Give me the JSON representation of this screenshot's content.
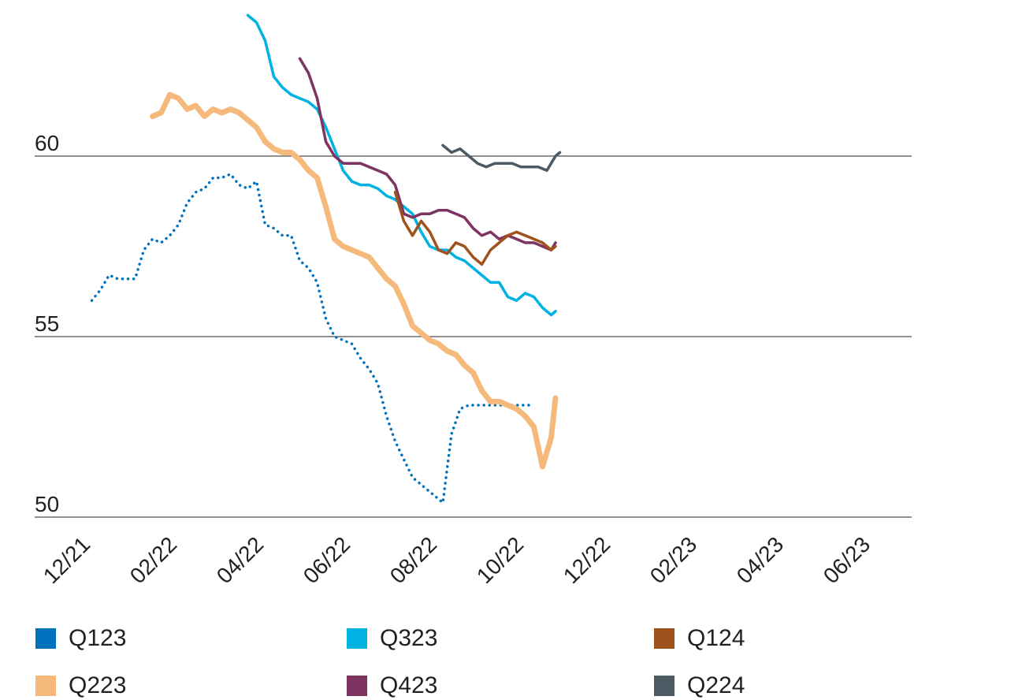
{
  "chart_data": {
    "type": "line",
    "ylim": [
      50,
      64
    ],
    "yticks": [
      50,
      55,
      60
    ],
    "x_tick_labels": [
      "12/21",
      "02/22",
      "04/22",
      "06/22",
      "08/22",
      "10/22",
      "12/22",
      "02/23",
      "04/23",
      "06/23"
    ],
    "x_tick_months": [
      0,
      2,
      4,
      6,
      8,
      10,
      12,
      14,
      16,
      18
    ],
    "grid": "horizontal",
    "legend_placement": "bottom",
    "series": [
      {
        "name": "Q123",
        "color": "#0071bc",
        "style": "dotted",
        "points": [
          [
            0.3,
            56
          ],
          [
            0.5,
            56.3
          ],
          [
            0.7,
            56.7
          ],
          [
            0.9,
            56.6
          ],
          [
            1.1,
            56.6
          ],
          [
            1.3,
            56.6
          ],
          [
            1.5,
            57.4
          ],
          [
            1.7,
            57.7
          ],
          [
            1.9,
            57.6
          ],
          [
            2.1,
            57.8
          ],
          [
            2.3,
            58.1
          ],
          [
            2.5,
            58.7
          ],
          [
            2.7,
            59.0
          ],
          [
            2.9,
            59.1
          ],
          [
            3.1,
            59.4
          ],
          [
            3.3,
            59.4
          ],
          [
            3.5,
            59.5
          ],
          [
            3.7,
            59.2
          ],
          [
            3.9,
            59.1
          ],
          [
            4.1,
            59.3
          ],
          [
            4.3,
            58.1
          ],
          [
            4.5,
            58.0
          ],
          [
            4.7,
            57.8
          ],
          [
            4.9,
            57.8
          ],
          [
            5.1,
            57.1
          ],
          [
            5.3,
            56.9
          ],
          [
            5.5,
            56.5
          ],
          [
            5.7,
            55.5
          ],
          [
            5.9,
            55.0
          ],
          [
            6.1,
            54.9
          ],
          [
            6.3,
            54.8
          ],
          [
            6.5,
            54.4
          ],
          [
            6.7,
            54.1
          ],
          [
            6.9,
            53.7
          ],
          [
            7.1,
            52.8
          ],
          [
            7.3,
            52.1
          ],
          [
            7.5,
            51.6
          ],
          [
            7.7,
            51.1
          ],
          [
            7.9,
            50.9
          ],
          [
            8.1,
            50.7
          ],
          [
            8.3,
            50.5
          ],
          [
            8.4,
            50.4
          ],
          [
            8.6,
            52.3
          ],
          [
            8.8,
            53.0
          ],
          [
            9.0,
            53.1
          ],
          [
            9.2,
            53.1
          ],
          [
            9.5,
            53.1
          ],
          [
            9.8,
            53.1
          ],
          [
            10.1,
            53.1
          ],
          [
            10.4,
            53.1
          ]
        ]
      },
      {
        "name": "Q223",
        "color": "#f5b97c",
        "style": "solid",
        "points": [
          [
            1.7,
            61.1
          ],
          [
            1.9,
            61.2
          ],
          [
            2.1,
            61.7
          ],
          [
            2.3,
            61.6
          ],
          [
            2.5,
            61.3
          ],
          [
            2.7,
            61.4
          ],
          [
            2.9,
            61.1
          ],
          [
            3.1,
            61.3
          ],
          [
            3.3,
            61.2
          ],
          [
            3.5,
            61.3
          ],
          [
            3.7,
            61.2
          ],
          [
            3.9,
            61.0
          ],
          [
            4.1,
            60.8
          ],
          [
            4.3,
            60.4
          ],
          [
            4.5,
            60.2
          ],
          [
            4.7,
            60.1
          ],
          [
            4.9,
            60.1
          ],
          [
            5.1,
            59.9
          ],
          [
            5.3,
            59.6
          ],
          [
            5.5,
            59.4
          ],
          [
            5.7,
            58.6
          ],
          [
            5.9,
            57.7
          ],
          [
            6.1,
            57.5
          ],
          [
            6.3,
            57.4
          ],
          [
            6.5,
            57.3
          ],
          [
            6.7,
            57.2
          ],
          [
            6.9,
            56.9
          ],
          [
            7.1,
            56.6
          ],
          [
            7.3,
            56.4
          ],
          [
            7.5,
            55.9
          ],
          [
            7.7,
            55.3
          ],
          [
            7.9,
            55.1
          ],
          [
            8.1,
            54.9
          ],
          [
            8.3,
            54.8
          ],
          [
            8.5,
            54.6
          ],
          [
            8.7,
            54.5
          ],
          [
            8.9,
            54.2
          ],
          [
            9.1,
            54.0
          ],
          [
            9.3,
            53.5
          ],
          [
            9.5,
            53.2
          ],
          [
            9.7,
            53.2
          ],
          [
            9.9,
            53.1
          ],
          [
            10.1,
            53.0
          ],
          [
            10.3,
            52.8
          ],
          [
            10.5,
            52.5
          ],
          [
            10.7,
            51.4
          ],
          [
            10.9,
            52.2
          ],
          [
            11.0,
            53.3
          ]
        ]
      },
      {
        "name": "Q323",
        "color": "#00b2e2",
        "style": "solid",
        "points": [
          [
            3.9,
            63.9
          ],
          [
            4.1,
            63.7
          ],
          [
            4.3,
            63.2
          ],
          [
            4.5,
            62.2
          ],
          [
            4.7,
            61.9
          ],
          [
            4.9,
            61.7
          ],
          [
            5.1,
            61.6
          ],
          [
            5.3,
            61.5
          ],
          [
            5.5,
            61.3
          ],
          [
            5.7,
            60.8
          ],
          [
            5.9,
            60.2
          ],
          [
            6.1,
            59.6
          ],
          [
            6.3,
            59.3
          ],
          [
            6.5,
            59.2
          ],
          [
            6.7,
            59.2
          ],
          [
            6.9,
            59.1
          ],
          [
            7.1,
            58.9
          ],
          [
            7.3,
            58.8
          ],
          [
            7.5,
            58.6
          ],
          [
            7.7,
            58.4
          ],
          [
            7.9,
            57.9
          ],
          [
            8.1,
            57.5
          ],
          [
            8.3,
            57.4
          ],
          [
            8.5,
            57.4
          ],
          [
            8.7,
            57.2
          ],
          [
            8.9,
            57.1
          ],
          [
            9.1,
            56.9
          ],
          [
            9.3,
            56.7
          ],
          [
            9.5,
            56.5
          ],
          [
            9.7,
            56.5
          ],
          [
            9.9,
            56.1
          ],
          [
            10.1,
            56.0
          ],
          [
            10.3,
            56.2
          ],
          [
            10.5,
            56.1
          ],
          [
            10.7,
            55.8
          ],
          [
            10.9,
            55.6
          ],
          [
            11.0,
            55.7
          ]
        ]
      },
      {
        "name": "Q423",
        "color": "#7d3460",
        "style": "solid",
        "points": [
          [
            5.1,
            62.7
          ],
          [
            5.3,
            62.3
          ],
          [
            5.5,
            61.6
          ],
          [
            5.7,
            60.4
          ],
          [
            5.9,
            60.0
          ],
          [
            6.1,
            59.8
          ],
          [
            6.3,
            59.8
          ],
          [
            6.5,
            59.8
          ],
          [
            6.7,
            59.7
          ],
          [
            6.9,
            59.6
          ],
          [
            7.1,
            59.5
          ],
          [
            7.3,
            59.2
          ],
          [
            7.5,
            58.4
          ],
          [
            7.7,
            58.3
          ],
          [
            7.9,
            58.4
          ],
          [
            8.1,
            58.4
          ],
          [
            8.3,
            58.5
          ],
          [
            8.5,
            58.5
          ],
          [
            8.7,
            58.4
          ],
          [
            8.9,
            58.3
          ],
          [
            9.1,
            58.0
          ],
          [
            9.3,
            57.8
          ],
          [
            9.5,
            57.9
          ],
          [
            9.7,
            57.7
          ],
          [
            9.9,
            57.8
          ],
          [
            10.1,
            57.7
          ],
          [
            10.3,
            57.6
          ],
          [
            10.5,
            57.6
          ],
          [
            10.7,
            57.5
          ],
          [
            10.9,
            57.4
          ],
          [
            11.0,
            57.6
          ]
        ]
      },
      {
        "name": "Q124",
        "color": "#a0521d",
        "style": "solid",
        "points": [
          [
            7.3,
            59.0
          ],
          [
            7.5,
            58.2
          ],
          [
            7.7,
            57.8
          ],
          [
            7.9,
            58.2
          ],
          [
            8.1,
            57.9
          ],
          [
            8.3,
            57.4
          ],
          [
            8.5,
            57.3
          ],
          [
            8.7,
            57.6
          ],
          [
            8.9,
            57.5
          ],
          [
            9.1,
            57.2
          ],
          [
            9.3,
            57.0
          ],
          [
            9.5,
            57.4
          ],
          [
            9.7,
            57.6
          ],
          [
            9.9,
            57.8
          ],
          [
            10.1,
            57.9
          ],
          [
            10.3,
            57.8
          ],
          [
            10.5,
            57.7
          ],
          [
            10.7,
            57.6
          ],
          [
            10.9,
            57.4
          ],
          [
            11.0,
            57.5
          ]
        ]
      },
      {
        "name": "Q224",
        "color": "#4b5a63",
        "style": "solid",
        "points": [
          [
            8.4,
            60.3
          ],
          [
            8.6,
            60.1
          ],
          [
            8.8,
            60.2
          ],
          [
            9.0,
            60.0
          ],
          [
            9.2,
            59.8
          ],
          [
            9.4,
            59.7
          ],
          [
            9.6,
            59.8
          ],
          [
            9.8,
            59.8
          ],
          [
            10.0,
            59.8
          ],
          [
            10.2,
            59.7
          ],
          [
            10.4,
            59.7
          ],
          [
            10.6,
            59.7
          ],
          [
            10.8,
            59.6
          ],
          [
            11.0,
            60.0
          ],
          [
            11.1,
            60.1
          ]
        ]
      }
    ]
  }
}
